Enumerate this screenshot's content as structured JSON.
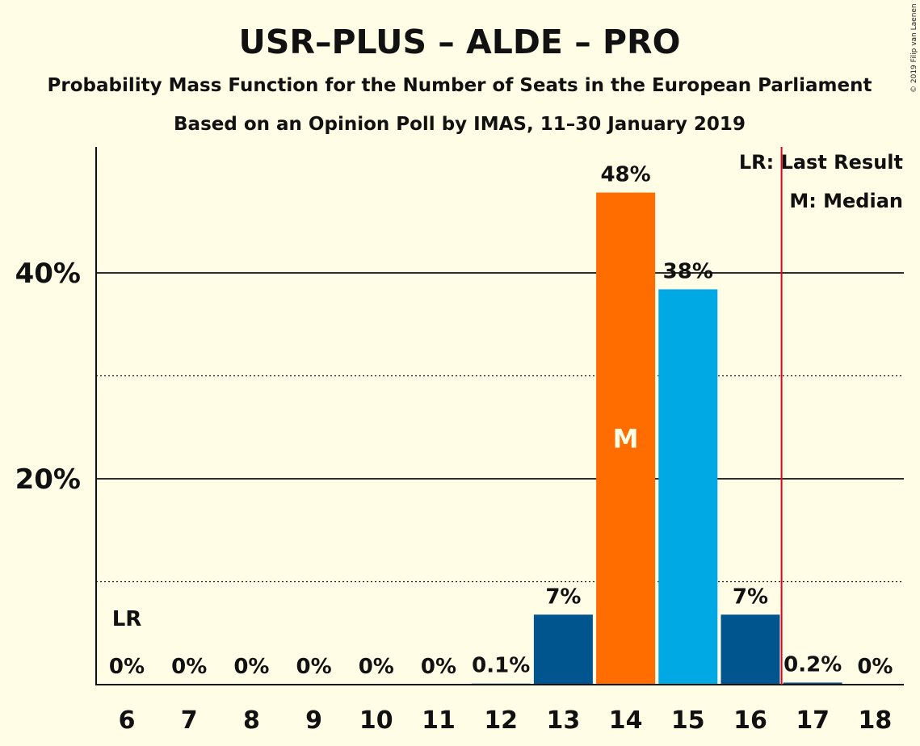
{
  "title": "USR–PLUS – ALDE – PRO",
  "subtitle": "Probability Mass Function for the Number of Seats in the European Parliament",
  "subtitle2": "Based on an Opinion Poll by IMAS, 11–30 January 2019",
  "copyright": "© 2019 Filip van Laenen",
  "legend": {
    "last_result": "LR: Last Result",
    "median": "M: Median"
  },
  "chart_data": {
    "type": "bar",
    "categories": [
      "6",
      "7",
      "8",
      "9",
      "10",
      "11",
      "12",
      "13",
      "14",
      "15",
      "16",
      "17",
      "18"
    ],
    "values": [
      0,
      0,
      0,
      0,
      0,
      0,
      0.1,
      6.8,
      47.8,
      38.4,
      6.8,
      0.2,
      0
    ],
    "value_labels": [
      "0%",
      "0%",
      "0%",
      "0%",
      "0%",
      "0%",
      "0.1%",
      "7%",
      "48%",
      "38%",
      "7%",
      "0.2%",
      "0%"
    ],
    "bar_colors": [
      "#00558F",
      "#00558F",
      "#00558F",
      "#00558F",
      "#00558F",
      "#00558F",
      "#00558F",
      "#00558F",
      "#FF6C00",
      "#00A8E4",
      "#00558F",
      "#00558F",
      "#00558F"
    ],
    "ylim": [
      0,
      52
    ],
    "yticks": [
      {
        "value": 20,
        "label": "20%"
      },
      {
        "value": 40,
        "label": "40%"
      }
    ],
    "dotted_gridlines": [
      10,
      30
    ],
    "last_result_seat": "6",
    "last_result_label": "LR",
    "median_seat": "14",
    "median_label": "M",
    "majority_line_after_seat": "16",
    "colors": {
      "background": "#FFFDE5",
      "dark_blue": "#00558F",
      "orange": "#FF6C00",
      "light_blue": "#00A8E4",
      "red_line": "#E2001A"
    }
  }
}
